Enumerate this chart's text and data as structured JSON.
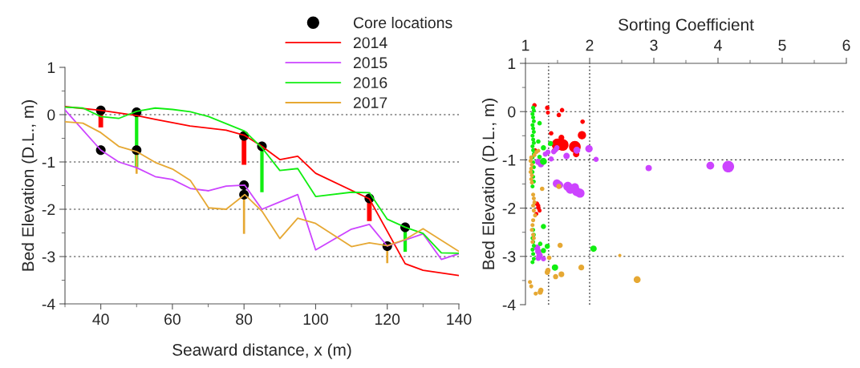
{
  "chart_data": [
    {
      "type": "line",
      "xlabel": "Seaward distance, x (m)",
      "ylabel": "Bed Elevation (D.L., m)",
      "xlim": [
        30,
        140
      ],
      "xticks": [
        40,
        60,
        80,
        100,
        120,
        140
      ],
      "ylim": [
        -4,
        1
      ],
      "yticks": [
        -4,
        -3,
        -2,
        -1,
        0,
        1
      ],
      "grid": "y",
      "legend": "top right",
      "line_style": "solid",
      "series": [
        {
          "name": "Core locations",
          "type": "scatter",
          "marker": "circle",
          "color": "#000000",
          "x": [
            40,
            40,
            50,
            50,
            80,
            80,
            80,
            85,
            115,
            120,
            125
          ],
          "values": [
            0.09,
            -0.75,
            0.05,
            -0.75,
            -0.45,
            -1.49,
            -1.69,
            -0.67,
            -1.77,
            -2.78,
            -2.38
          ]
        },
        {
          "name": "2014",
          "color": "#ff0000",
          "x": [
            30,
            40,
            50,
            55.2,
            64.9,
            75,
            80.2,
            85,
            90,
            95,
            100,
            115,
            125,
            130,
            140
          ],
          "values": [
            0.17,
            0.09,
            -0.02,
            -0.1,
            -0.24,
            -0.33,
            -0.44,
            -0.67,
            -0.95,
            -0.88,
            -1.24,
            -1.78,
            -3.15,
            -3.29,
            -3.4
          ]
        },
        {
          "name": "2015",
          "color": "#cc44ff",
          "x": [
            30,
            40,
            45,
            50,
            55.2,
            60,
            65,
            70.1,
            75,
            80.2,
            85,
            95,
            100,
            110,
            115,
            120,
            130,
            135.1,
            140
          ],
          "values": [
            0.1,
            -0.75,
            -1.0,
            -1.12,
            -1.31,
            -1.37,
            -1.56,
            -1.61,
            -1.51,
            -1.49,
            -2.0,
            -1.69,
            -2.86,
            -2.42,
            -2.32,
            -2.78,
            -2.52,
            -3.06,
            -2.94
          ]
        },
        {
          "name": "2016",
          "color": "#11ee11",
          "x": [
            30,
            35,
            40,
            45,
            50,
            55.2,
            60,
            65,
            70.1,
            80.2,
            85,
            90,
            95,
            100,
            110,
            115,
            120,
            125,
            130,
            135.1,
            140
          ],
          "values": [
            0.16,
            0.14,
            -0.04,
            -0.08,
            0.07,
            0.14,
            0.11,
            0.06,
            -0.04,
            -0.35,
            -0.7,
            -1.18,
            -1.14,
            -1.73,
            -1.64,
            -1.65,
            -2.21,
            -2.38,
            -2.51,
            -2.92,
            -2.93
          ]
        },
        {
          "name": "2017",
          "color": "#e6a833",
          "x": [
            30,
            35,
            40,
            45,
            50,
            55.2,
            60,
            65,
            70.1,
            75,
            80.2,
            85,
            90,
            95,
            100,
            110,
            115,
            120,
            125,
            130,
            140
          ],
          "values": [
            -0.15,
            -0.18,
            -0.38,
            -0.67,
            -0.78,
            -1.01,
            -1.15,
            -1.39,
            -1.97,
            -2.0,
            -1.69,
            -2.04,
            -2.62,
            -2.19,
            -2.3,
            -2.79,
            -2.71,
            -2.77,
            -2.64,
            -2.41,
            -2.89
          ]
        },
        {
          "type": "bar",
          "color": "#ff0000",
          "x": [
            40,
            80,
            115
          ],
          "base": [
            0.09,
            -0.45,
            -1.77
          ],
          "values": [
            -0.36,
            -0.61,
            -0.48
          ]
        },
        {
          "type": "bar",
          "color": "#11ee11",
          "x": [
            50,
            85,
            125
          ],
          "base": [
            0.05,
            -0.67,
            -2.38
          ],
          "values": [
            -1.16,
            -0.97,
            -0.52
          ]
        },
        {
          "type": "bar",
          "color": "#e6a833",
          "x": [
            50,
            80,
            120
          ],
          "base": [
            -0.75,
            -1.69,
            -2.78
          ],
          "values": [
            -0.5,
            -0.83,
            -0.36
          ]
        }
      ]
    },
    {
      "type": "bubble",
      "xlabel": "Sorting Coefficient",
      "ylabel": "Bed Elevation (D.L., m)",
      "xlim": [
        1,
        6
      ],
      "xticks": [
        1,
        2,
        3,
        4,
        5,
        6
      ],
      "ylim": [
        -4,
        1
      ],
      "yticks": [
        -4,
        -3,
        -2,
        -1,
        0,
        1
      ],
      "grid": "y",
      "marker": "circle",
      "ref_lines": [
        {
          "axis": "x",
          "value": 1.36,
          "color": "#555555",
          "line_style": "dotted"
        },
        {
          "axis": "x",
          "value": 2.0,
          "color": "#555555",
          "line_style": "dotted"
        }
      ],
      "series": [
        {
          "color": "#ff0000",
          "x": [
            1.14,
            1.34,
            1.35,
            1.57,
            1.52,
            1.89,
            1.4,
            1.56,
            1.88,
            1.5,
            1.58,
            1.77,
            1.79,
            1.45,
            1.15,
            1.18,
            1.2,
            1.22,
            1.17,
            1.2
          ],
          "values": [
            0.13,
            0.08,
            -0.02,
            0.03,
            -0.07,
            -0.21,
            -0.45,
            -0.54,
            -0.49,
            -0.68,
            -0.69,
            -0.73,
            -0.88,
            -0.81,
            -0.8,
            -1.91,
            -1.99,
            -2.05,
            -2.12,
            -1.95
          ],
          "sizes": [
            0.15,
            0.15,
            0.12,
            0.15,
            0.15,
            0.15,
            0.15,
            0.25,
            0.5,
            1,
            1,
            1,
            0.3,
            0.2,
            0.12,
            0.15,
            0.15,
            0.12,
            0.12,
            0.12
          ]
        },
        {
          "color": "#cc44ff",
          "x": [
            1.35,
            1.44,
            1.47,
            1.49,
            1.64,
            1.8,
            1.99,
            2.1,
            1.2,
            1.24,
            1.4,
            1.31,
            1.49,
            1.53,
            1.66,
            1.7,
            1.77,
            1.8,
            1.85,
            1.18,
            1.2,
            1.22,
            1.28,
            1.2,
            2.92,
            3.88,
            4.16
          ],
          "values": [
            -0.84,
            -0.83,
            -0.79,
            -0.75,
            -0.92,
            -0.8,
            -0.77,
            -0.99,
            -1.04,
            -1.09,
            -0.98,
            -0.88,
            -1.49,
            -1.52,
            -1.55,
            -1.61,
            -1.57,
            -1.66,
            -1.69,
            -2.82,
            -2.9,
            -2.98,
            -3.05,
            -3.04,
            -1.17,
            -1.12,
            -1.14
          ],
          "sizes": [
            0.2,
            0.2,
            0.2,
            0.2,
            0.3,
            0.35,
            0.4,
            0.2,
            0.3,
            0.3,
            0.2,
            0.2,
            0.5,
            0.4,
            0.6,
            0.6,
            0.5,
            0.6,
            0.6,
            0.3,
            0.3,
            0.3,
            0.2,
            0.2,
            0.3,
            0.45,
            1
          ]
        },
        {
          "color": "#11ee11",
          "x": [
            1.12,
            1.13,
            1.11,
            1.12,
            1.13,
            1.11,
            1.12,
            1.13,
            1.11,
            1.12,
            1.13,
            1.11,
            1.12,
            1.13,
            1.11,
            1.12,
            1.13,
            1.11,
            1.12,
            1.13,
            1.11,
            1.12,
            1.13,
            1.11,
            1.12,
            1.13,
            1.11,
            1.12,
            1.13,
            1.11,
            1.22,
            1.2,
            1.28,
            1.39,
            1.22,
            1.28,
            1.28,
            1.23,
            1.34,
            1.28,
            1.46,
            2.06
          ],
          "values": [
            0.08,
            0.02,
            -0.05,
            -0.12,
            -0.2,
            -0.28,
            -0.35,
            -0.42,
            -0.5,
            -0.58,
            -0.65,
            -0.72,
            -0.8,
            -0.88,
            -0.95,
            -1.05,
            -1.15,
            -1.25,
            -1.35,
            -1.45,
            -1.55,
            -2.45,
            -2.55,
            -2.62,
            -2.7,
            -2.78,
            -2.86,
            -2.95,
            -3.05,
            -3.12,
            -0.24,
            -0.62,
            -0.75,
            -0.66,
            -0.94,
            -1.03,
            -2.38,
            -2.74,
            -2.79,
            -2.88,
            -3.23,
            -2.84
          ],
          "sizes": [
            0.12,
            0.12,
            0.12,
            0.12,
            0.12,
            0.12,
            0.12,
            0.12,
            0.12,
            0.12,
            0.12,
            0.12,
            0.12,
            0.12,
            0.12,
            0.12,
            0.12,
            0.12,
            0.12,
            0.12,
            0.12,
            0.12,
            0.12,
            0.12,
            0.12,
            0.12,
            0.12,
            0.12,
            0.12,
            0.12,
            0.15,
            0.15,
            0.2,
            0.2,
            0.15,
            0.35,
            0.2,
            0.15,
            0.2,
            0.2,
            0.3,
            0.3
          ]
        },
        {
          "color": "#e6a833",
          "x": [
            1.09,
            1.08,
            1.1,
            1.09,
            1.08,
            1.1,
            1.09,
            1.1,
            1.12,
            1.13,
            1.14,
            1.12,
            1.13,
            1.15,
            1.12,
            1.11,
            1.1,
            1.12,
            1.13,
            1.11,
            1.2,
            1.17,
            1.14,
            1.26,
            1.52,
            1.54,
            1.37,
            1.35,
            1.34,
            1.47,
            1.56,
            1.87,
            1.07,
            1.09,
            1.16,
            1.24,
            1.23,
            2.47,
            2.74
          ],
          "values": [
            -0.95,
            -1.02,
            -1.1,
            -1.18,
            -1.25,
            -1.32,
            -1.4,
            -1.47,
            -1.72,
            -1.8,
            -1.88,
            -1.95,
            -2.05,
            -2.15,
            -2.25,
            -2.35,
            -2.45,
            -2.55,
            -2.62,
            -2.7,
            -0.81,
            -0.84,
            -0.9,
            -1.6,
            -1.55,
            -2.77,
            -3.03,
            -3.29,
            -3.33,
            -3.42,
            -3.37,
            -3.23,
            -3.53,
            -3.62,
            -3.77,
            -3.7,
            -3.74,
            -2.98,
            -3.48
          ],
          "sizes": [
            0.12,
            0.12,
            0.12,
            0.12,
            0.12,
            0.12,
            0.12,
            0.12,
            0.12,
            0.12,
            0.12,
            0.12,
            0.12,
            0.12,
            0.12,
            0.12,
            0.12,
            0.12,
            0.12,
            0.12,
            0.12,
            0.12,
            0.12,
            0.15,
            0.2,
            0.2,
            0.15,
            0.2,
            0.2,
            0.2,
            0.25,
            0.25,
            0.12,
            0.12,
            0.12,
            0.2,
            0.2,
            0.08,
            0.35
          ]
        }
      ]
    }
  ]
}
